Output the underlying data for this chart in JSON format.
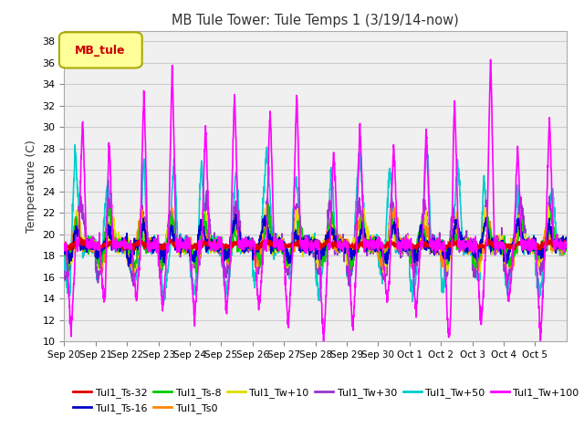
{
  "title": "MB Tule Tower: Tule Temps 1 (3/19/14-now)",
  "ylabel": "Temperature (C)",
  "ylim": [
    10,
    39
  ],
  "yticks": [
    10,
    12,
    14,
    16,
    18,
    20,
    22,
    24,
    26,
    28,
    30,
    32,
    34,
    36,
    38
  ],
  "xlabel_dates": [
    "Sep 20",
    "Sep 21",
    "Sep 22",
    "Sep 23",
    "Sep 24",
    "Sep 25",
    "Sep 26",
    "Sep 27",
    "Sep 28",
    "Sep 29",
    "Sep 30",
    "Oct 1",
    "Oct 2",
    "Oct 3",
    "Oct 4",
    "Oct 5"
  ],
  "series_order": [
    "Tul1_Ts-32",
    "Tul1_Ts-16",
    "Tul1_Ts-8",
    "Tul1_Ts0",
    "Tul1_Tw+10",
    "Tul1_Tw+30",
    "Tul1_Tw+50",
    "Tul1_Tw+100"
  ],
  "series": {
    "Tul1_Ts-32": {
      "color": "#dd0000",
      "lw": 1.2,
      "zorder": 5
    },
    "Tul1_Ts-16": {
      "color": "#0000cc",
      "lw": 1.2,
      "zorder": 4
    },
    "Tul1_Ts-8": {
      "color": "#00cc00",
      "lw": 1.2,
      "zorder": 4
    },
    "Tul1_Ts0": {
      "color": "#ff8800",
      "lw": 1.2,
      "zorder": 4
    },
    "Tul1_Tw+10": {
      "color": "#dddd00",
      "lw": 1.2,
      "zorder": 4
    },
    "Tul1_Tw+30": {
      "color": "#9933cc",
      "lw": 1.2,
      "zorder": 4
    },
    "Tul1_Tw+50": {
      "color": "#00cccc",
      "lw": 1.2,
      "zorder": 4
    },
    "Tul1_Tw+100": {
      "color": "#ff00ff",
      "lw": 1.2,
      "zorder": 6
    }
  },
  "legend_entries_row1": [
    "Tul1_Ts-32",
    "Tul1_Ts-16",
    "Tul1_Ts-8",
    "Tul1_Ts0",
    "Tul1_Tw+10",
    "Tul1_Tw+30"
  ],
  "legend_entries_row2": [
    "Tul1_Tw+50",
    "Tul1_Tw+100"
  ],
  "legend_box": {
    "facecolor": "#ffff99",
    "edgecolor": "#aaaa00",
    "label": "MB_tule",
    "text_color": "#cc0000"
  },
  "bg_color": "#ffffff",
  "plot_bg": "#f0f0f0",
  "grid_color": "#cccccc",
  "n_days": 16,
  "seed": 42
}
